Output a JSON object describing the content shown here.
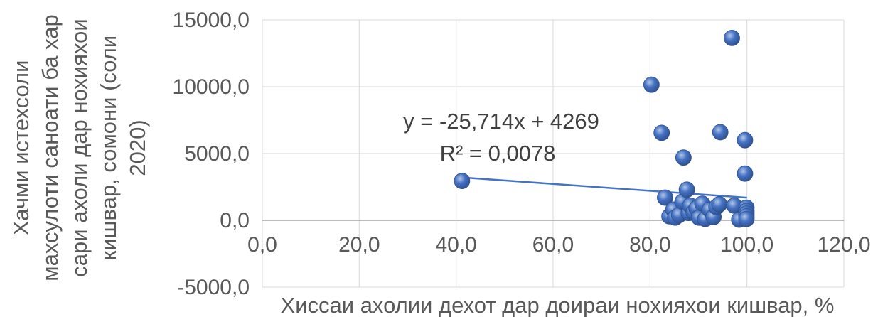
{
  "chart_data": {
    "type": "scatter",
    "xlabel": "Хиссаи ахолии дехот дар доираи нохияхои кишвар, %",
    "ylabel_lines": [
      "Хачми истехсоли",
      "махсулоти саноати ба хар",
      "сари ахоли дар нохияхои",
      "кишвар, сомони (соли",
      "2020)"
    ],
    "xlim": [
      0,
      120
    ],
    "ylim": [
      -5000,
      15000
    ],
    "x_ticks": [
      "0,0",
      "20,0",
      "40,0",
      "60,0",
      "80,0",
      "100,0",
      "120,0"
    ],
    "y_ticks": [
      "-5000,0",
      "0,0",
      "5000,0",
      "10000,0",
      "15000,0"
    ],
    "grid": "vertical and horizontal",
    "marker_color": "#4472c4",
    "trendline_color": "#4472c4",
    "trendline": {
      "slope": -25.714,
      "intercept": 4269,
      "x_range": [
        41.2,
        100
      ],
      "equation": "y = -25,714x + 4269",
      "r2": "R² = 0,0078"
    },
    "points": [
      {
        "x": 41.2,
        "y": 2950
      },
      {
        "x": 80.3,
        "y": 10150
      },
      {
        "x": 82.4,
        "y": 6550
      },
      {
        "x": 83.1,
        "y": 1700
      },
      {
        "x": 84.0,
        "y": 300
      },
      {
        "x": 84.8,
        "y": 800
      },
      {
        "x": 85.2,
        "y": 200
      },
      {
        "x": 86.0,
        "y": 400
      },
      {
        "x": 86.7,
        "y": 1400
      },
      {
        "x": 86.9,
        "y": 4700
      },
      {
        "x": 87.6,
        "y": 2300
      },
      {
        "x": 88.0,
        "y": 550
      },
      {
        "x": 88.3,
        "y": 1100
      },
      {
        "x": 89.0,
        "y": 600
      },
      {
        "x": 89.6,
        "y": 900
      },
      {
        "x": 90.1,
        "y": 200
      },
      {
        "x": 90.8,
        "y": 1250
      },
      {
        "x": 91.4,
        "y": 100
      },
      {
        "x": 92.3,
        "y": 800
      },
      {
        "x": 93.1,
        "y": 250
      },
      {
        "x": 93.7,
        "y": 1000
      },
      {
        "x": 94.3,
        "y": 1200
      },
      {
        "x": 94.5,
        "y": 6600
      },
      {
        "x": 96.9,
        "y": 13650
      },
      {
        "x": 97.4,
        "y": 1100
      },
      {
        "x": 98.4,
        "y": 50
      },
      {
        "x": 99.6,
        "y": 6000
      },
      {
        "x": 99.6,
        "y": 3500
      },
      {
        "x": 99.9,
        "y": 950
      },
      {
        "x": 99.9,
        "y": 700
      },
      {
        "x": 99.9,
        "y": 500
      },
      {
        "x": 99.9,
        "y": 300
      },
      {
        "x": 99.9,
        "y": 100
      }
    ]
  }
}
